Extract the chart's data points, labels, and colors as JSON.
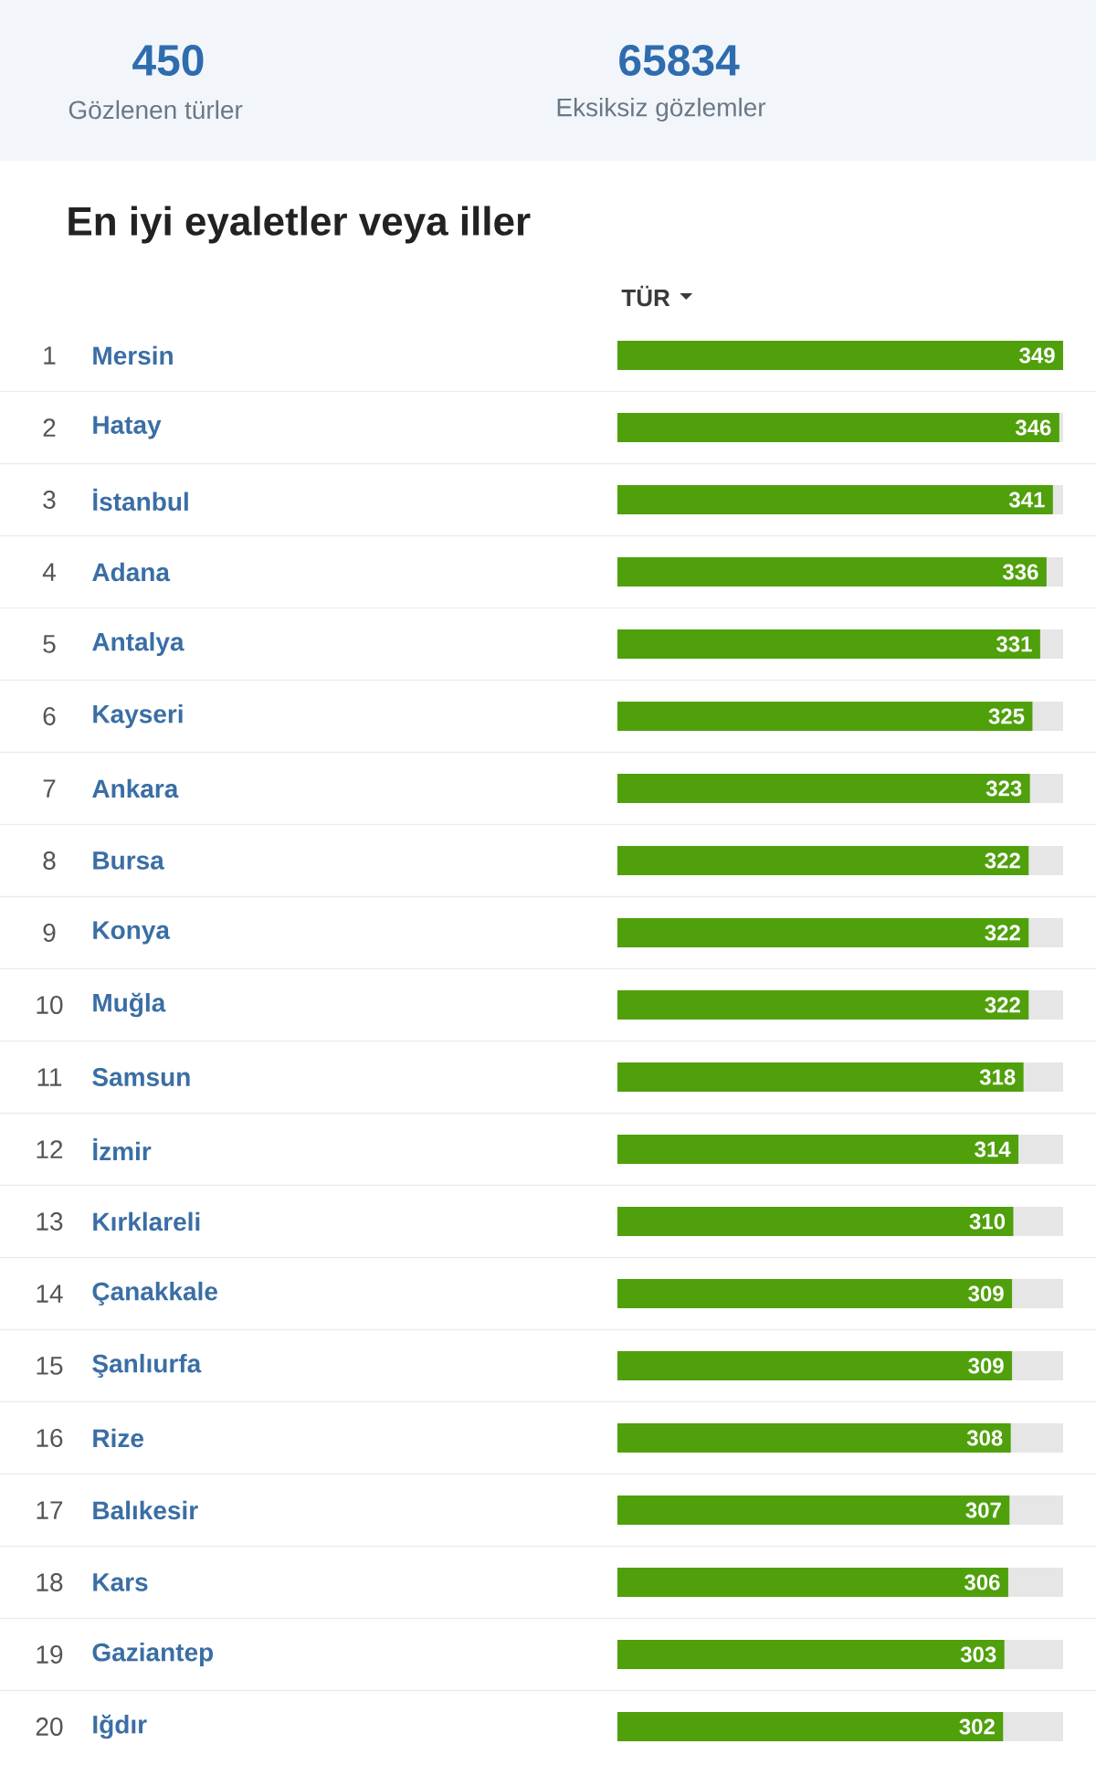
{
  "chart_data": {
    "type": "bar",
    "orientation": "horizontal",
    "title": "En iyi eyaletler veya iller",
    "xlabel": "TÜR",
    "categories": [
      "Mersin",
      "Hatay",
      "İstanbul",
      "Adana",
      "Antalya",
      "Kayseri",
      "Ankara",
      "Bursa",
      "Konya",
      "Muğla",
      "Samsun",
      "İzmir",
      "Kırklareli",
      "Çanakkale",
      "Şanlıurfa",
      "Rize",
      "Balıkesir",
      "Kars",
      "Gaziantep",
      "Iğdır"
    ],
    "values": [
      349,
      346,
      341,
      336,
      331,
      325,
      323,
      322,
      322,
      322,
      318,
      314,
      310,
      309,
      309,
      308,
      307,
      306,
      303,
      302
    ],
    "color": "#4fa00b",
    "xlim": [
      0,
      349
    ],
    "data_labels": true,
    "tick_labels": "y",
    "annotations": [
      "450",
      "Gözlenen türler",
      "65834",
      "Eksiksiz gözlemler",
      "1",
      "2",
      "3",
      "4",
      "5",
      "6",
      "7",
      "8",
      "9",
      "10",
      "11",
      "12",
      "13",
      "14",
      "15",
      "16",
      "17",
      "18",
      "19",
      "20"
    ]
  }
}
